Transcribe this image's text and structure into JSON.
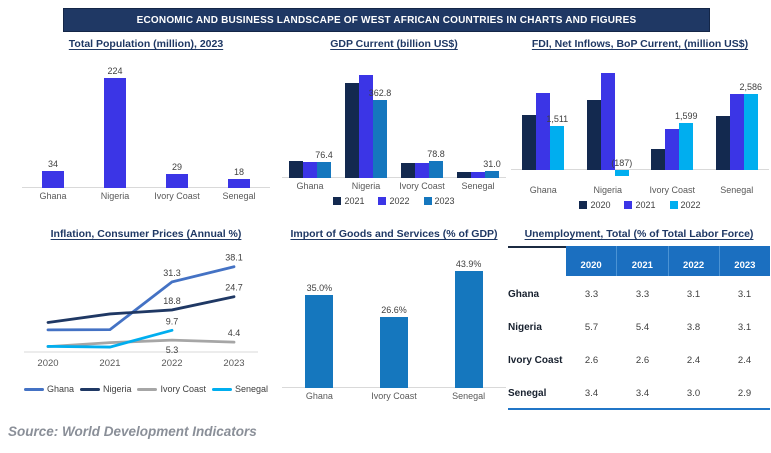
{
  "banner": {
    "title": "ECONOMIC AND BUSINESS LANDSCAPE OF WEST AFRICAN COUNTRIES IN CHARTS AND FIGURES"
  },
  "source": "Source: World Development Indicators",
  "colors": {
    "banner_navy": "#1F3864",
    "bar_purple": "#3B35E6",
    "bar_dark_navy": "#13294F",
    "bar_steel_blue": "#1577BE",
    "bar_cyan": "#00AEEF",
    "line_ghana_blue": "#4472C4",
    "line_gray": "#A6A6A6",
    "table_header_blue": "#1B6FC0"
  },
  "chart_data": [
    {
      "id": "population",
      "type": "bar",
      "title": "Total Population (million), 2023",
      "categories": [
        "Ghana",
        "Nigeria",
        "Ivory Coast",
        "Senegal"
      ],
      "values": [
        34,
        224,
        29,
        18
      ],
      "labels": [
        "34",
        "224",
        "29",
        "18"
      ],
      "bar_color": "#3B35E6",
      "ylim": [
        0,
        240
      ],
      "grid": false,
      "legend_position": "none"
    },
    {
      "id": "gdp",
      "type": "bar",
      "title": "GDP Current (billion US$)",
      "categories": [
        "Ghana",
        "Nigeria",
        "Ivory Coast",
        "Senegal"
      ],
      "series": [
        {
          "name": "2021",
          "color": "#13294F",
          "values": [
            79.1,
            440.8,
            71.6,
            27.6
          ]
        },
        {
          "name": "2022",
          "color": "#3B35E6",
          "values": [
            74.0,
            477.4,
            70.7,
            27.7
          ]
        },
        {
          "name": "2023",
          "color": "#1577BE",
          "values": [
            76.4,
            362.8,
            78.8,
            31.0
          ]
        }
      ],
      "labeled_series": "2023",
      "labels": [
        "76.4",
        "362.8",
        "78.8",
        "31.0"
      ],
      "legend": [
        "2021",
        "2022",
        "2023"
      ],
      "ylim": [
        0,
        500
      ],
      "grid": false,
      "legend_position": "bottom"
    },
    {
      "id": "fdi",
      "type": "bar",
      "title": "FDI, Net Inflows, BoP Current, (million US$)",
      "categories": [
        "Ghana",
        "Nigeria",
        "Ivory Coast",
        "Senegal"
      ],
      "series": [
        {
          "name": "2020",
          "color": "#13294F",
          "values": [
            1880,
            2390,
            715,
            1850
          ]
        },
        {
          "name": "2021",
          "color": "#3B35E6",
          "values": [
            2610,
            3310,
            1380,
            2590
          ]
        },
        {
          "name": "2022",
          "color": "#00AEEF",
          "values": [
            1511,
            -187,
            1599,
            2586
          ]
        }
      ],
      "labeled_series": "2022",
      "labels": [
        "1,511",
        "(187)",
        "1,599",
        "2,586"
      ],
      "legend": [
        "2020",
        "2021",
        "2022"
      ],
      "ylim": [
        -250,
        3400
      ],
      "grid": false,
      "legend_position": "bottom"
    },
    {
      "id": "inflation",
      "type": "line",
      "title": "Inflation, Consumer Prices (Annual %)",
      "x": [
        "2020",
        "2021",
        "2022",
        "2023"
      ],
      "series": [
        {
          "name": "Ghana",
          "color": "#4472C4",
          "values": [
            9.9,
            10.0,
            31.3,
            38.1
          ],
          "point_labels": [
            {
              "i": 2,
              "text": "31.3",
              "pos": "above"
            },
            {
              "i": 3,
              "text": "38.1",
              "pos": "above"
            }
          ]
        },
        {
          "name": "Nigeria",
          "color": "#1F3864",
          "values": [
            13.2,
            17.0,
            18.8,
            24.7
          ],
          "point_labels": [
            {
              "i": 2,
              "text": "18.8",
              "pos": "above"
            },
            {
              "i": 3,
              "text": "24.7",
              "pos": "above"
            }
          ]
        },
        {
          "name": "Ivory Coast",
          "color": "#A6A6A6",
          "values": [
            2.4,
            4.2,
            5.3,
            4.4
          ],
          "point_labels": [
            {
              "i": 2,
              "text": "5.3",
              "pos": "below"
            },
            {
              "i": 3,
              "text": "4.4",
              "pos": "above"
            }
          ]
        },
        {
          "name": "Senegal",
          "color": "#00AEEF",
          "values": [
            2.5,
            2.2,
            9.7,
            null
          ],
          "point_labels": [
            {
              "i": 2,
              "text": "9.7",
              "pos": "above"
            }
          ]
        }
      ],
      "legend": [
        "Ghana",
        "Nigeria",
        "Ivory Coast",
        "Senegal"
      ],
      "ylim": [
        0,
        42
      ],
      "grid": false,
      "legend_position": "bottom"
    },
    {
      "id": "imports",
      "type": "bar",
      "title": "Import of Goods and Services (% of GDP)",
      "categories": [
        "Ghana",
        "Ivory Coast",
        "Senegal"
      ],
      "values": [
        35.0,
        26.6,
        43.9
      ],
      "labels": [
        "35.0%",
        "26.6%",
        "43.9%"
      ],
      "bar_color": "#1577BE",
      "ylim": [
        0,
        48
      ],
      "grid": false,
      "legend_position": "none"
    },
    {
      "id": "unemployment",
      "type": "table",
      "title": "Unemployment, Total (% of Total Labor Force)",
      "columns": [
        "",
        "2020",
        "2021",
        "2022",
        "2023"
      ],
      "rows": [
        {
          "label": "Ghana",
          "values": [
            "3.3",
            "3.3",
            "3.1",
            "3.1"
          ]
        },
        {
          "label": "Nigeria",
          "values": [
            "5.7",
            "5.4",
            "3.8",
            "3.1"
          ]
        },
        {
          "label": "Ivory Coast",
          "values": [
            "2.6",
            "2.6",
            "2.4",
            "2.4"
          ]
        },
        {
          "label": "Senegal",
          "values": [
            "3.4",
            "3.4",
            "3.0",
            "2.9"
          ]
        }
      ]
    }
  ]
}
